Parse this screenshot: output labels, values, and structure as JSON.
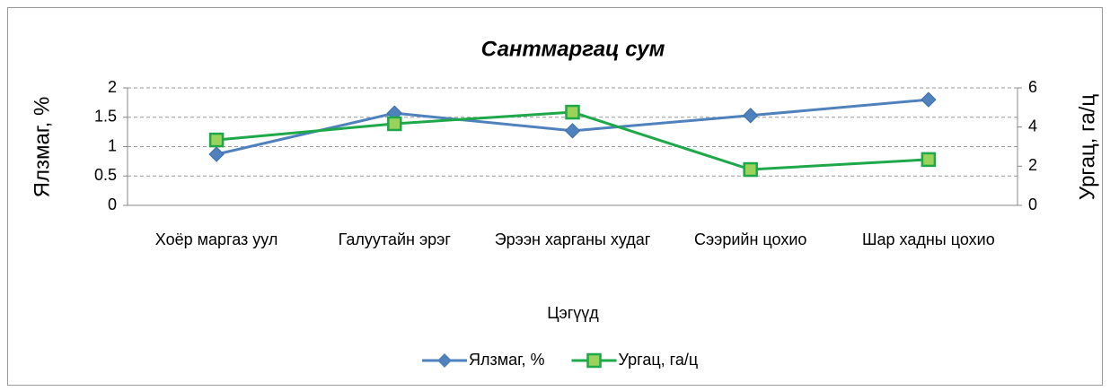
{
  "chart_data": {
    "type": "line",
    "title": "Сантмаргац сум",
    "categories": [
      "Хоёр маргаз уул",
      "Галуутайн эрэг",
      "Эрээн харганы худаг",
      "Сээрийн цохио",
      "Шар хадны цохио"
    ],
    "series": [
      {
        "name": "Ялзмаг, %",
        "color": "#4f81bd",
        "marker": "diamond",
        "values": [
          0.87,
          1.57,
          1.27,
          1.53,
          1.8
        ]
      },
      {
        "name": "Ургац, га/ц",
        "color": "#1ea84a",
        "marker": "square",
        "axis": "y2",
        "values": [
          3.34,
          4.17,
          4.76,
          1.83,
          2.34
        ]
      }
    ],
    "xlabel": "Цэгүүд",
    "ylabel": "Ялзмаг, %",
    "y2label": "Ургац, га/ц",
    "ylim": [
      0,
      2
    ],
    "yticks": [
      0,
      0.5,
      1,
      1.5,
      2
    ],
    "y2lim": [
      0,
      6
    ],
    "y2ticks": [
      0,
      2,
      4,
      6
    ],
    "grid": true,
    "legend": "bottom"
  }
}
